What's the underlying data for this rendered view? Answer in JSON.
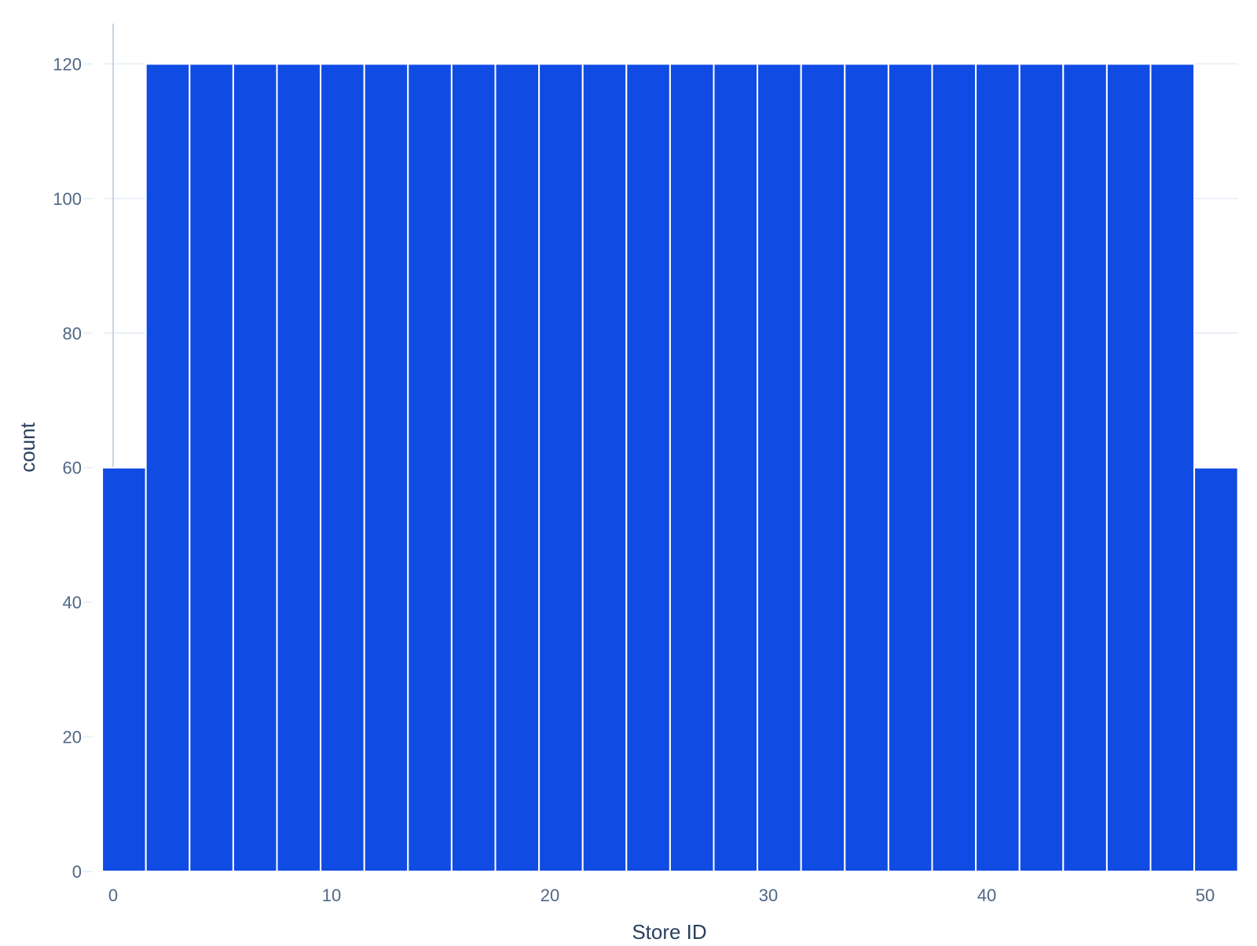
{
  "chart_data": {
    "type": "bar",
    "title": "",
    "xlabel": "Store ID",
    "ylabel": "count",
    "bin_edges": [
      -0.5,
      1.5,
      3.5,
      5.5,
      7.5,
      9.5,
      11.5,
      13.5,
      15.5,
      17.5,
      19.5,
      21.5,
      23.5,
      25.5,
      27.5,
      29.5,
      31.5,
      33.5,
      35.5,
      37.5,
      39.5,
      41.5,
      43.5,
      45.5,
      47.5,
      49.5,
      51.5
    ],
    "values": [
      60,
      120,
      120,
      120,
      120,
      120,
      120,
      120,
      120,
      120,
      120,
      120,
      120,
      120,
      120,
      120,
      120,
      120,
      120,
      120,
      120,
      120,
      120,
      120,
      120,
      60
    ],
    "xlim": [
      -0.5,
      51.5
    ],
    "ylim": [
      0,
      126
    ],
    "x_ticks": [
      0,
      10,
      20,
      30,
      40,
      50
    ],
    "x_tick_labels": [
      "0",
      "10",
      "20",
      "30",
      "40",
      "50"
    ],
    "y_ticks": [
      0,
      20,
      40,
      60,
      80,
      100,
      120
    ],
    "y_tick_labels": [
      "0",
      "20",
      "40",
      "60",
      "80",
      "100",
      "120"
    ],
    "grid": true,
    "legend": "none",
    "colors": {
      "bar": "#104be4",
      "bar_edge": "#ffffff",
      "grid": "#ebf0f8",
      "zero_line": "#c8d4e3",
      "tick_text": "#506784",
      "title_text": "#2a3f5f"
    }
  }
}
